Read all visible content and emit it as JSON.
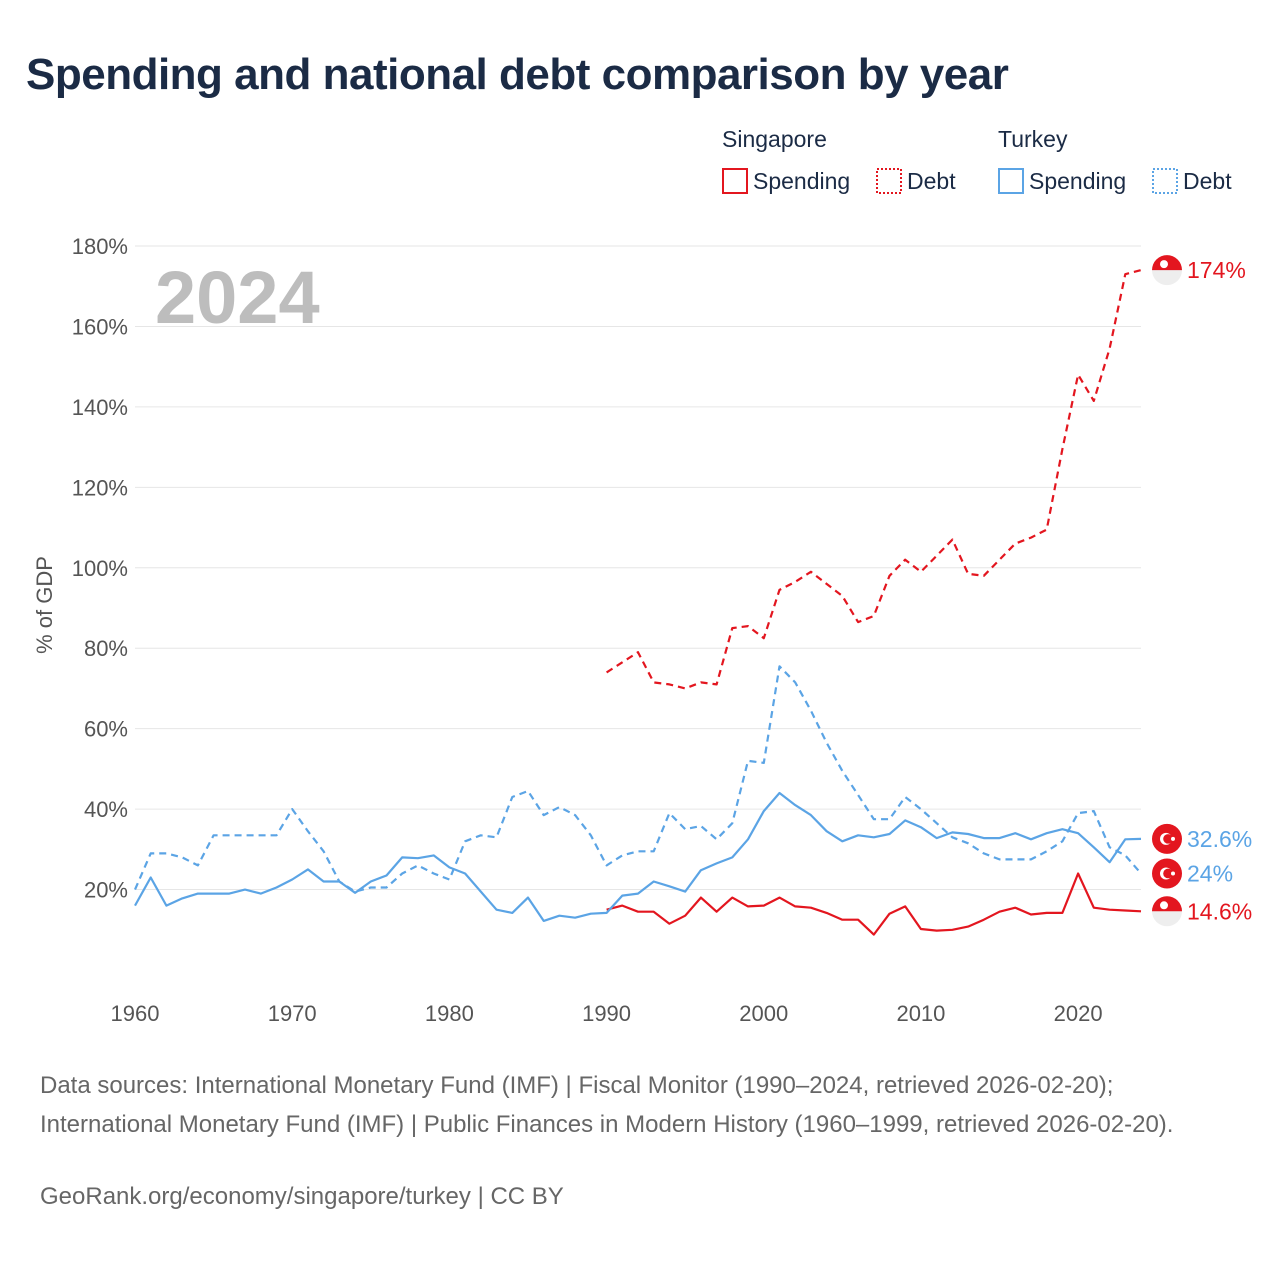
{
  "title": "Spending and national debt comparison by year",
  "year_watermark": "2024",
  "legend": {
    "groups": [
      {
        "country": "Singapore",
        "items": [
          "Spending",
          "Debt"
        ],
        "color": "#e3161f"
      },
      {
        "country": "Turkey",
        "items": [
          "Spending",
          "Debt"
        ],
        "color": "#5ba4e5"
      }
    ]
  },
  "sources": "Data sources: International Monetary Fund (IMF) | Fiscal Monitor (1990–2024, retrieved 2026-02-20); International Monetary Fund (IMF) | Public Finances in Modern History (1960–1999, retrieved 2026-02-20).",
  "credit": "GeoRank.org/economy/singapore/turkey | CC BY",
  "chart_data": {
    "type": "line",
    "title": "Spending and national debt comparison by year",
    "xlabel": "",
    "ylabel": "% of GDP",
    "xlim": [
      1960,
      2024
    ],
    "ylim": [
      0,
      180
    ],
    "x_ticks": [
      "1960",
      "1970",
      "1980",
      "1990",
      "2000",
      "2010",
      "2020"
    ],
    "y_ticks": [
      "20%",
      "40%",
      "60%",
      "80%",
      "100%",
      "120%",
      "140%",
      "160%",
      "180%"
    ],
    "grid": true,
    "series": [
      {
        "name": "Singapore Debt",
        "country": "Singapore",
        "metric": "Debt",
        "color": "#e3161f",
        "dash": "dashed",
        "end_label": "174%",
        "x": [
          1990,
          1991,
          1992,
          1993,
          1994,
          1995,
          1996,
          1997,
          1998,
          1999,
          2000,
          2001,
          2002,
          2003,
          2004,
          2005,
          2006,
          2007,
          2008,
          2009,
          2010,
          2011,
          2012,
          2013,
          2014,
          2015,
          2016,
          2017,
          2018,
          2019,
          2020,
          2021,
          2022,
          2023,
          2024
        ],
        "y": [
          74,
          76.5,
          79,
          71.5,
          71,
          70,
          71.5,
          71,
          85,
          85.5,
          82.5,
          94.5,
          96.5,
          99,
          96,
          93,
          86.5,
          88,
          98,
          102,
          99,
          103,
          107,
          98.5,
          98,
          102,
          106,
          107.5,
          109.5,
          129.5,
          148,
          141.5,
          154.5,
          173,
          174
        ]
      },
      {
        "name": "Singapore Spending",
        "country": "Singapore",
        "metric": "Spending",
        "color": "#e3161f",
        "dash": "solid",
        "end_label": "14.6%",
        "x": [
          1990,
          1991,
          1992,
          1993,
          1994,
          1995,
          1996,
          1997,
          1998,
          1999,
          2000,
          2001,
          2002,
          2003,
          2004,
          2005,
          2006,
          2007,
          2008,
          2009,
          2010,
          2011,
          2012,
          2013,
          2014,
          2015,
          2016,
          2017,
          2018,
          2019,
          2020,
          2021,
          2022,
          2023,
          2024
        ],
        "y": [
          15,
          16,
          14.5,
          14.5,
          11.5,
          13.5,
          18,
          14.5,
          18,
          15.8,
          16,
          18,
          15.8,
          15.5,
          14.2,
          12.5,
          12.5,
          8.8,
          14,
          15.8,
          10.2,
          9.8,
          10,
          10.8,
          12.5,
          14.5,
          15.5,
          13.8,
          14.2,
          14.2,
          24,
          15.5,
          15,
          14.8,
          14.6
        ]
      },
      {
        "name": "Turkey Spending",
        "country": "Turkey",
        "metric": "Spending",
        "color": "#5ba4e5",
        "dash": "solid",
        "end_label": "32.6%",
        "x": [
          1960,
          1961,
          1962,
          1963,
          1964,
          1965,
          1966,
          1967,
          1968,
          1969,
          1970,
          1971,
          1972,
          1973,
          1974,
          1975,
          1976,
          1977,
          1978,
          1979,
          1980,
          1981,
          1982,
          1983,
          1984,
          1985,
          1986,
          1987,
          1988,
          1989,
          1990,
          1991,
          1992,
          1993,
          1994,
          1995,
          1996,
          1997,
          1998,
          1999,
          2000,
          2001,
          2002,
          2003,
          2004,
          2005,
          2006,
          2007,
          2008,
          2009,
          2010,
          2011,
          2012,
          2013,
          2014,
          2015,
          2016,
          2017,
          2018,
          2019,
          2020,
          2021,
          2022,
          2023,
          2024
        ],
        "y": [
          16,
          23,
          16,
          17.8,
          19,
          19,
          19,
          20,
          19,
          20.5,
          22.5,
          25,
          22,
          22,
          19.2,
          22,
          23.5,
          28,
          27.8,
          28.5,
          25.5,
          24,
          19.5,
          15,
          14.2,
          18,
          12.2,
          13.5,
          13,
          14,
          14.2,
          18.5,
          19,
          22,
          20.8,
          19.5,
          24.8,
          26.5,
          28,
          32.5,
          39.5,
          44,
          41,
          38.5,
          34.5,
          32,
          33.5,
          33,
          33.8,
          37.2,
          35.5,
          32.8,
          34.2,
          33.8,
          32.8,
          32.8,
          34,
          32.5,
          34,
          35,
          34,
          30.5,
          26.8,
          32.5,
          32.6
        ]
      },
      {
        "name": "Turkey Debt",
        "country": "Turkey",
        "metric": "Debt",
        "color": "#5ba4e5",
        "dash": "dashed",
        "end_label": "24%",
        "x": [
          1960,
          1961,
          1962,
          1963,
          1964,
          1965,
          1966,
          1967,
          1968,
          1969,
          1970,
          1971,
          1972,
          1973,
          1974,
          1975,
          1976,
          1977,
          1978,
          1979,
          1980,
          1981,
          1982,
          1983,
          1984,
          1985,
          1986,
          1987,
          1988,
          1989,
          1990,
          1991,
          1992,
          1993,
          1994,
          1995,
          1996,
          1997,
          1998,
          1999,
          2000,
          2001,
          2002,
          2003,
          2004,
          2005,
          2006,
          2007,
          2008,
          2009,
          2010,
          2011,
          2012,
          2013,
          2014,
          2015,
          2016,
          2017,
          2018,
          2019,
          2020,
          2021,
          2022,
          2023,
          2024
        ],
        "y": [
          20,
          29,
          29,
          28,
          26,
          33.5,
          33.5,
          33.5,
          33.5,
          33.5,
          40,
          34.5,
          29.5,
          22,
          19.5,
          20.5,
          20.5,
          24,
          26,
          24,
          22.5,
          32,
          33.5,
          33,
          43,
          44.5,
          38.5,
          40.5,
          38.5,
          33.5,
          26,
          28.5,
          29.5,
          29.5,
          39,
          35,
          35.8,
          32.5,
          36.5,
          52,
          51.5,
          75.5,
          71.5,
          64.5,
          56.5,
          49.5,
          43.5,
          37.5,
          37.5,
          43,
          40,
          36.5,
          33,
          31.5,
          29,
          27.5,
          27.5,
          27.5,
          29.5,
          32,
          39,
          39.5,
          30.5,
          28.5,
          24
        ]
      }
    ]
  }
}
